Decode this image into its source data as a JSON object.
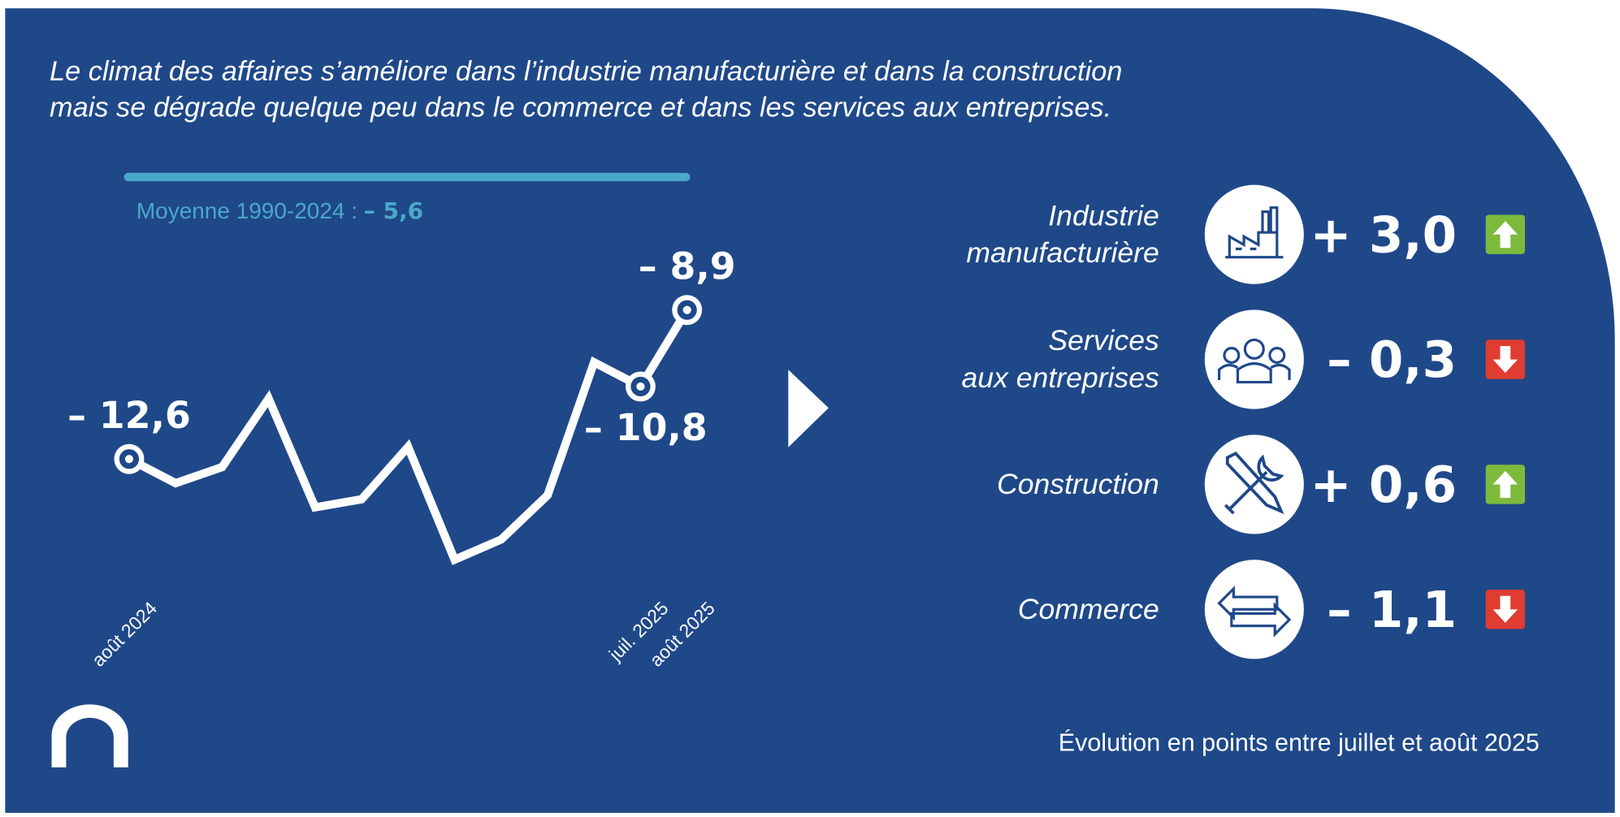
{
  "title_lines": [
    "Le climat des affaires s’améliore dans l’industrie manufacturière et dans la construction",
    "mais se dégrade quelque peu dans le commerce et dans les services aux entreprises."
  ],
  "chart_data": {
    "type": "line",
    "categories": [
      "août 2024",
      null,
      null,
      null,
      null,
      null,
      null,
      null,
      null,
      null,
      null,
      "juil. 2025",
      "août 2025"
    ],
    "values": [
      -12.6,
      -13.2,
      -12.8,
      -11.1,
      -13.8,
      -13.6,
      -12.3,
      -15.1,
      -14.6,
      -13.5,
      -10.2,
      -10.8,
      -8.9
    ],
    "value_labels": [
      "– 12,6",
      null,
      null,
      null,
      null,
      null,
      null,
      null,
      null,
      null,
      null,
      "– 10,8",
      "– 8,9"
    ],
    "color": "#ffffff",
    "ylim": [
      -16,
      -5
    ],
    "reference": {
      "label": "Moyenne 1990-2024 : ",
      "value": -5.6,
      "value_label": "– 5,6",
      "color": "#4aa8c8"
    }
  },
  "sectors": [
    {
      "name": [
        "Industrie",
        "manufacturière"
      ],
      "value": 3.0,
      "value_label": "+ 3,0",
      "icon": "factory"
    },
    {
      "name": [
        "Services",
        "aux entreprises"
      ],
      "value": -0.3,
      "value_label": "– 0,3",
      "icon": "people"
    },
    {
      "name": [
        "Construction"
      ],
      "value": 0.6,
      "value_label": "+ 0,6",
      "icon": "tools"
    },
    {
      "name": [
        "Commerce"
      ],
      "value": -1.1,
      "value_label": "– 1,1",
      "icon": "arrows"
    }
  ],
  "up_color": "#7dba3c",
  "down_color": "#e03c31",
  "footer": "Évolution en points entre juillet et août 2025"
}
